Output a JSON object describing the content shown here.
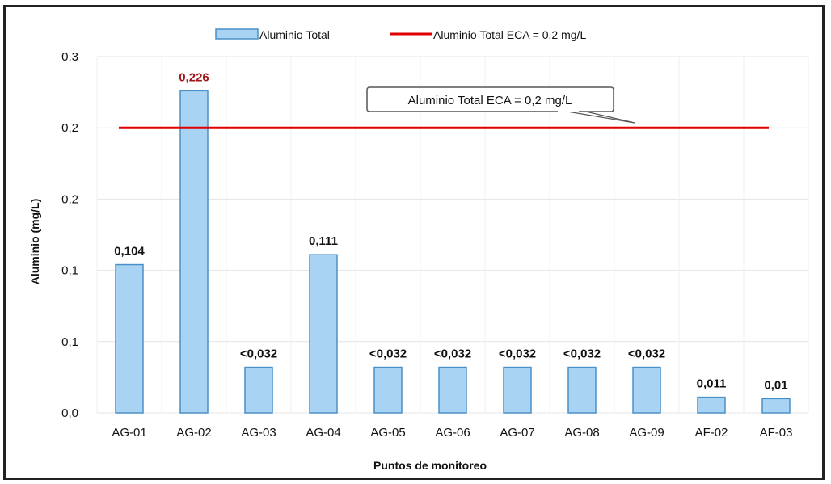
{
  "chart_data": {
    "type": "bar",
    "categories": [
      "AG-01",
      "AG-02",
      "AG-03",
      "AG-04",
      "AG-05",
      "AG-06",
      "AG-07",
      "AG-08",
      "AG-09",
      "AF-02",
      "AF-03"
    ],
    "series": [
      {
        "name": "Aluminio Total",
        "values": [
          0.104,
          0.226,
          0.032,
          0.111,
          0.032,
          0.032,
          0.032,
          0.032,
          0.032,
          0.011,
          0.01
        ],
        "labels": [
          "0,104",
          "0,226",
          "<0,032",
          "0,111",
          "<0,032",
          "<0,032",
          "<0,032",
          "<0,032",
          "<0,032",
          "0,011",
          "0,01"
        ],
        "label_colors": [
          "#111111",
          "#a0161a",
          "#111111",
          "#111111",
          "#111111",
          "#111111",
          "#111111",
          "#111111",
          "#111111",
          "#111111",
          "#111111"
        ],
        "color": "#a9d3f2",
        "border_color": "#4a90c8"
      },
      {
        "name": "Aluminio Total ECA = 0,2 mg/L",
        "type": "line",
        "value": 0.2,
        "color": "#e00000"
      }
    ],
    "ylim": [
      0,
      0.25
    ],
    "yticks": [
      0,
      0.05,
      0.1,
      0.15,
      0.2,
      0.25
    ],
    "ytick_labels": [
      "0,0",
      "0,1",
      "0,1",
      "0,2",
      "0,2",
      "0,3"
    ],
    "xlabel": "Puntos de monitoreo",
    "ylabel": "Aluminio (mg/L)",
    "legend_position": "top",
    "grid": true,
    "annotation": "Aluminio Total ECA = 0,2 mg/L"
  }
}
